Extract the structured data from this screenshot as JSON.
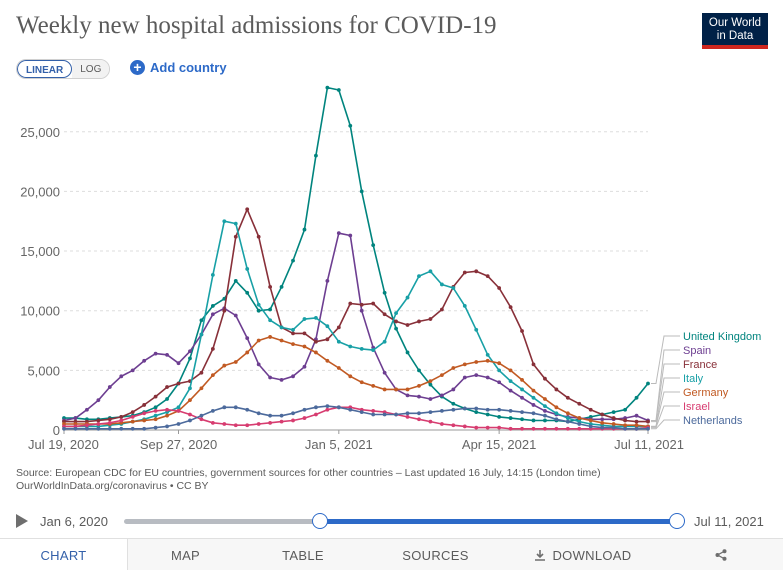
{
  "header": {
    "title": "Weekly new hospital admissions for COVID-19",
    "logo_line1": "Our World",
    "logo_line2": "in Data"
  },
  "controls": {
    "linear_label": "LINEAR",
    "log_label": "LOG",
    "add_country_label": "Add country"
  },
  "chart_data": {
    "type": "line",
    "title": "Weekly new hospital admissions for COVID-19",
    "xlabel": "",
    "ylabel": "",
    "ylim": [
      0,
      28500
    ],
    "grid": "horizontal dashed",
    "legend_placement": "right, at line ends",
    "y_ticks": [
      "0",
      "5,000",
      "10,000",
      "15,000",
      "20,000",
      "25,000"
    ],
    "y_tick_values": [
      0,
      5000,
      10000,
      15000,
      20000,
      25000
    ],
    "x_ticks": [
      "Jul 19, 2020",
      "Sep 27, 2020",
      "Jan 5, 2021",
      "Apr 15, 2021",
      "Jul 11, 2021"
    ],
    "x_tick_weeks": [
      0,
      10,
      24,
      38,
      51
    ],
    "x_start": "Jul 19, 2020",
    "x_end": "Jul 11, 2021",
    "x_step": "weekly",
    "series": [
      {
        "name": "United Kingdom",
        "color": "#00847e",
        "values": [
          1000,
          1000,
          900,
          900,
          1000,
          1100,
          1200,
          1500,
          1900,
          2600,
          3900,
          6000,
          9200,
          10400,
          11000,
          12500,
          11500,
          10000,
          10100,
          12000,
          14200,
          16800,
          23000,
          28700,
          28500,
          25500,
          20000,
          15500,
          11500,
          8500,
          6500,
          5000,
          3800,
          2800,
          2200,
          1800,
          1500,
          1300,
          1100,
          1000,
          900,
          800,
          800,
          800,
          700,
          900,
          1100,
          1300,
          1500,
          1700,
          2700,
          3900
        ]
      },
      {
        "name": "Spain",
        "color": "#6d3e91",
        "values": [
          800,
          1000,
          1700,
          2500,
          3600,
          4500,
          5000,
          5800,
          6400,
          6300,
          5600,
          6600,
          8000,
          9700,
          10200,
          9600,
          7700,
          5500,
          4400,
          4200,
          4500,
          5300,
          7600,
          12500,
          16500,
          16300,
          10000,
          6900,
          4800,
          3400,
          2900,
          2800,
          2600,
          2900,
          3400,
          4400,
          4600,
          4400,
          4000,
          3300,
          2700,
          2100,
          1600,
          1300,
          1100,
          1000,
          900,
          900,
          900,
          1000,
          1200,
          800
        ]
      },
      {
        "name": "France",
        "color": "#883039",
        "values": [
          700,
          700,
          700,
          800,
          900,
          1100,
          1500,
          2100,
          2800,
          3600,
          3900,
          4100,
          4800,
          6800,
          10000,
          16200,
          18500,
          16200,
          12000,
          8600,
          8100,
          8100,
          7400,
          7600,
          8600,
          10600,
          10500,
          10600,
          9700,
          9100,
          8800,
          9100,
          9300,
          10100,
          12000,
          13200,
          13300,
          12900,
          11900,
          10300,
          8300,
          5500,
          4300,
          3400,
          2700,
          2200,
          1700,
          1300,
          1000,
          800,
          700,
          700
        ]
      },
      {
        "name": "Italy",
        "color": "#18a0a6",
        "values": [
          300,
          300,
          300,
          300,
          400,
          500,
          700,
          900,
          1200,
          1500,
          1900,
          3500,
          8000,
          13000,
          17500,
          17300,
          13500,
          10500,
          9200,
          8600,
          8400,
          9300,
          9400,
          8700,
          7400,
          7000,
          6800,
          6700,
          7400,
          9800,
          11100,
          12900,
          13300,
          12200,
          11900,
          10400,
          8400,
          6300,
          5000,
          4100,
          3400,
          2700,
          2000,
          1400,
          1000,
          700,
          500,
          400,
          300,
          300,
          300,
          300
        ]
      },
      {
        "name": "Germany",
        "color": "#c15a23",
        "values": [
          500,
          500,
          500,
          500,
          500,
          600,
          700,
          800,
          900,
          1200,
          1600,
          2500,
          3500,
          4600,
          5400,
          5700,
          6500,
          7500,
          7800,
          7500,
          7200,
          7000,
          6500,
          5800,
          5200,
          4500,
          4000,
          3700,
          3400,
          3400,
          3400,
          3700,
          4100,
          4600,
          5200,
          5500,
          5700,
          5800,
          5600,
          5000,
          4200,
          3300,
          2600,
          1900,
          1400,
          1000,
          800,
          600,
          500,
          400,
          400,
          300
        ]
      },
      {
        "name": "Israel",
        "color": "#d73c70",
        "values": [
          300,
          300,
          400,
          500,
          600,
          800,
          1100,
          1400,
          1600,
          1700,
          1600,
          1300,
          900,
          600,
          500,
          400,
          400,
          500,
          600,
          700,
          800,
          1000,
          1300,
          1700,
          1900,
          1900,
          1700,
          1600,
          1500,
          1300,
          1100,
          900,
          700,
          500,
          400,
          300,
          200,
          200,
          200,
          100,
          100,
          100,
          100,
          100,
          100,
          100,
          100,
          100,
          100,
          100,
          100,
          200
        ]
      },
      {
        "name": "Netherlands",
        "color": "#4c6a9c",
        "values": [
          100,
          100,
          100,
          100,
          100,
          100,
          100,
          100,
          200,
          300,
          500,
          800,
          1200,
          1600,
          1900,
          1900,
          1700,
          1400,
          1200,
          1200,
          1400,
          1700,
          1900,
          2000,
          1900,
          1700,
          1500,
          1300,
          1300,
          1300,
          1400,
          1400,
          1500,
          1600,
          1700,
          1800,
          1800,
          1700,
          1700,
          1600,
          1500,
          1400,
          1200,
          900,
          700,
          500,
          300,
          200,
          200,
          100,
          100,
          100
        ]
      }
    ]
  },
  "source_note": {
    "line1": "Source: European CDC for EU countries, government sources for other countries – Last updated 16 July, 14:15 (London time)",
    "line2": "OurWorldInData.org/coronavirus • CC BY"
  },
  "timeline": {
    "start_label": "Jan 6, 2020",
    "end_label": "Jul 11, 2021"
  },
  "tabs": {
    "chart": "CHART",
    "map": "MAP",
    "table": "TABLE",
    "sources": "SOURCES",
    "download": "DOWNLOAD"
  }
}
